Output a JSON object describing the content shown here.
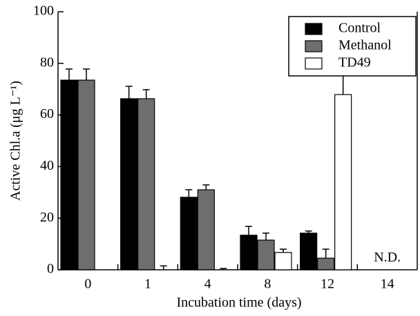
{
  "chart_data": {
    "type": "bar",
    "x_label": "Incubation time (days)",
    "y_label": "Active Chl.a (μg L⁻¹)",
    "categories": [
      "0",
      "1",
      "4",
      "8",
      "12",
      "14"
    ],
    "series": [
      {
        "name": "Control",
        "color": "#000000",
        "values": [
          73.5,
          66.3,
          28.1,
          13.4,
          14.2,
          null
        ],
        "errors": [
          4.3,
          4.8,
          2.9,
          3.4,
          0.8,
          null
        ]
      },
      {
        "name": "Methanol",
        "color": "#6e6e6e",
        "values": [
          73.5,
          66.3,
          31.0,
          11.5,
          4.5,
          null
        ],
        "errors": [
          4.3,
          3.5,
          1.9,
          2.7,
          3.5,
          null
        ]
      },
      {
        "name": "TD49",
        "color": "#ffffff",
        "values": [
          null,
          0,
          0,
          6.7,
          67.9,
          null
        ],
        "errors": [
          null,
          1.5,
          0.5,
          1.3,
          7.8,
          null
        ]
      }
    ],
    "annotations": [
      {
        "text": "N.D.",
        "category": "14"
      }
    ],
    "ylim": [
      0,
      100
    ],
    "yticks": [
      0,
      20,
      40,
      60,
      80,
      100
    ],
    "legend": "upper right"
  }
}
